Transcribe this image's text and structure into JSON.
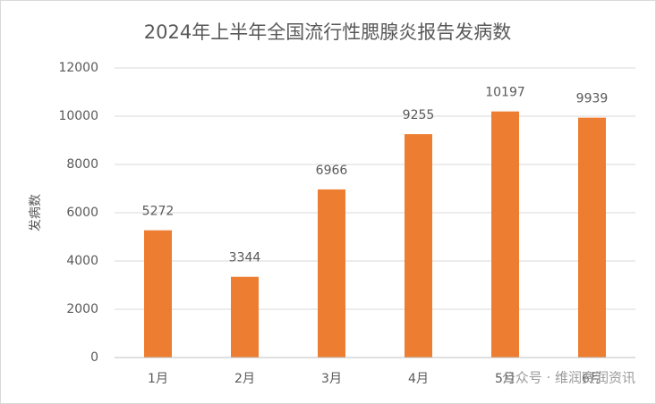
{
  "chart_data": {
    "type": "bar",
    "title": "2024年上半年全国流行性腮腺炎报告发病数",
    "y_label": "发病数",
    "categories": [
      "1月",
      "2月",
      "3月",
      "4月",
      "5月",
      "6月"
    ],
    "values": [
      5272,
      3344,
      6966,
      9255,
      10197,
      9939
    ],
    "color": "#ed7d31",
    "ylim": [
      0,
      12000
    ],
    "yticks": [
      0,
      2000,
      4000,
      6000,
      8000,
      10000,
      12000
    ],
    "grid": true,
    "data_labels": true,
    "watermark": "公众号 · 维润赛润资讯"
  }
}
